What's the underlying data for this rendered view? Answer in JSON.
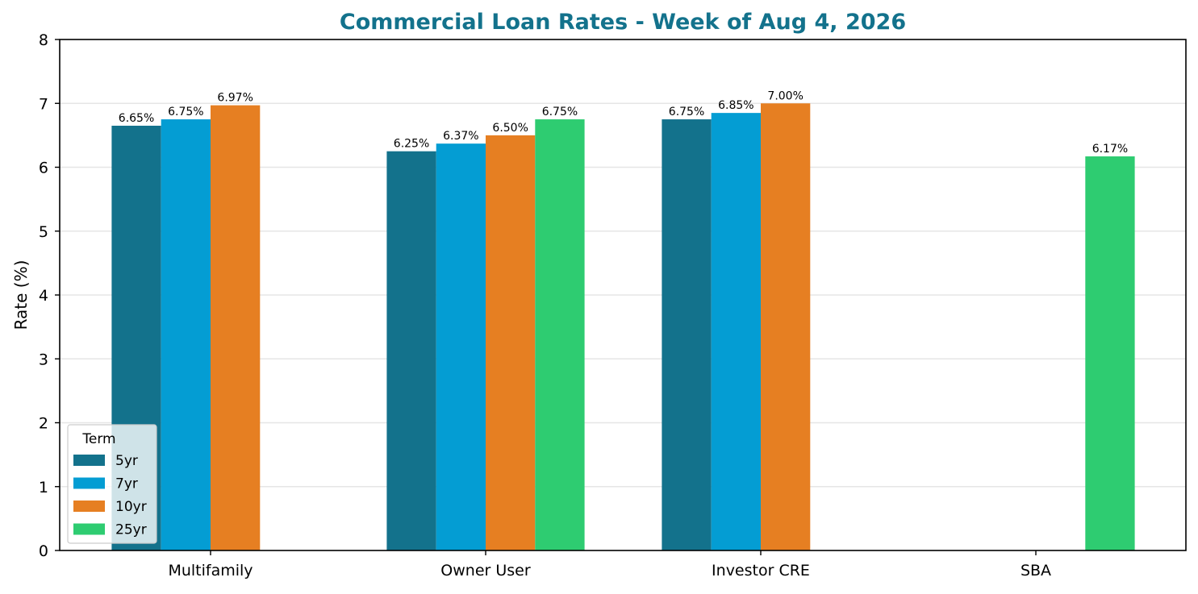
{
  "chart_data": {
    "type": "bar",
    "title": "Commercial Loan Rates - Week of Aug 4, 2026",
    "xlabel": "",
    "ylabel": "Rate (%)",
    "ylim": [
      0,
      8
    ],
    "yticks": [
      "0",
      "1",
      "2",
      "3",
      "4",
      "5",
      "6",
      "7",
      "8"
    ],
    "categories": [
      "Multifamily",
      "Owner User",
      "Investor CRE",
      "SBA"
    ],
    "series": [
      {
        "name": "5yr",
        "color": "#13728c",
        "values": [
          6.65,
          6.25,
          6.75,
          null
        ],
        "labels": [
          "6.65%",
          "6.25%",
          "6.75%",
          null
        ]
      },
      {
        "name": "7yr",
        "color": "#049dd3",
        "values": [
          6.75,
          6.37,
          6.85,
          null
        ],
        "labels": [
          "6.75%",
          "6.37%",
          "6.85%",
          null
        ]
      },
      {
        "name": "10yr",
        "color": "#e67f22",
        "values": [
          6.97,
          6.5,
          7.0,
          null
        ],
        "labels": [
          "6.97%",
          "6.50%",
          "7.00%",
          null
        ]
      },
      {
        "name": "25yr",
        "color": "#2ecc71",
        "values": [
          null,
          6.75,
          null,
          6.17
        ],
        "labels": [
          null,
          "6.75%",
          null,
          "6.17%"
        ]
      }
    ],
    "legend": {
      "title": "Term",
      "placement": "lower-left"
    },
    "grid": "horizontal",
    "title_color": "#13728c"
  }
}
